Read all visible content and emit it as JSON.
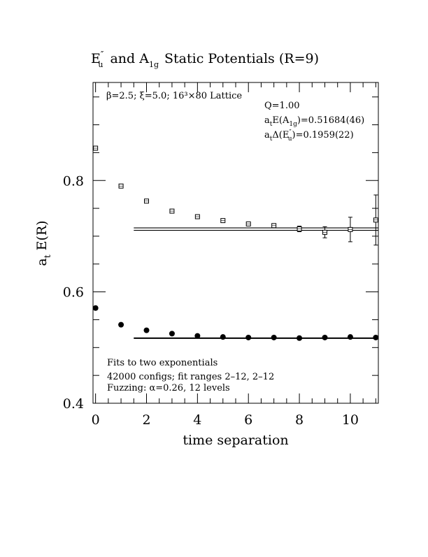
{
  "chart_data": {
    "type": "scatter",
    "title": {
      "part1_main": "E",
      "part1_sup": "″",
      "part1_sub": "u",
      "part2": "and A",
      "part2_sub": "1g",
      "part3": "Static Potentials (R=9)"
    },
    "xlabel": "time separation",
    "ylabel": {
      "main": "a",
      "sub": "t",
      "rest": "E(R)"
    },
    "xlim": [
      -0.1,
      11.1
    ],
    "ylim": [
      0.4,
      0.976
    ],
    "x_ticks": [
      0,
      2,
      4,
      6,
      8,
      10
    ],
    "y_ticks": [
      0.4,
      0.6,
      0.8
    ],
    "x_tick_labels": [
      "0",
      "2",
      "4",
      "6",
      "8",
      "10"
    ],
    "y_tick_labels": [
      "0.4",
      "0.6",
      "0.8"
    ],
    "grid": false,
    "series": [
      {
        "marker": "open-square",
        "points": [
          {
            "x": 0,
            "y": 0.858,
            "err": 0
          },
          {
            "x": 1,
            "y": 0.79,
            "err": 0
          },
          {
            "x": 2,
            "y": 0.763,
            "err": 0
          },
          {
            "x": 3,
            "y": 0.745,
            "err": 0
          },
          {
            "x": 4,
            "y": 0.735,
            "err": 0
          },
          {
            "x": 5,
            "y": 0.728,
            "err": 0
          },
          {
            "x": 6,
            "y": 0.722,
            "err": 0
          },
          {
            "x": 7,
            "y": 0.719,
            "err": 0
          },
          {
            "x": 8,
            "y": 0.713,
            "err": 0.005
          },
          {
            "x": 9,
            "y": 0.707,
            "err": 0.01
          },
          {
            "x": 10,
            "y": 0.712,
            "err": 0.022
          },
          {
            "x": 11,
            "y": 0.729,
            "err": 0.045
          }
        ],
        "fit": {
          "x_start": 1.5,
          "x_end": 11.1,
          "value": 0.7127,
          "band": 0.0022
        }
      },
      {
        "marker": "filled-circle",
        "points": [
          {
            "x": 0,
            "y": 0.571
          },
          {
            "x": 1,
            "y": 0.541
          },
          {
            "x": 2,
            "y": 0.531
          },
          {
            "x": 3,
            "y": 0.525
          },
          {
            "x": 4,
            "y": 0.521
          },
          {
            "x": 5,
            "y": 0.519
          },
          {
            "x": 6,
            "y": 0.518
          },
          {
            "x": 7,
            "y": 0.518
          },
          {
            "x": 8,
            "y": 0.517
          },
          {
            "x": 9,
            "y": 0.518
          },
          {
            "x": 10,
            "y": 0.519
          },
          {
            "x": 11,
            "y": 0.518
          }
        ],
        "fit": {
          "x_start": 1.5,
          "x_end": 11.1,
          "value": 0.5168,
          "band": 0.0005
        }
      }
    ],
    "annotations": {
      "lattice": "β=2.5; ξ=5.0; 16³×80 Lattice",
      "q": "Q=1.00",
      "energy_prefix": "a",
      "energy_prefix_sub": "t",
      "energy_mid": "E(A",
      "energy_sub": "1g",
      "energy_value": ")=0.51684(46)",
      "delta_prefix": "a",
      "delta_prefix_sub": "t",
      "delta_mid": "Δ(E",
      "delta_sup": "″",
      "delta_sub": "u",
      "delta_value": ")=0.1959(22)",
      "fit_line1": "Fits to two exponentials",
      "fit_line2": "42000 configs; fit ranges 2–12, 2–12",
      "fit_line3": "Fuzzing: α=0.26, 12 levels"
    }
  }
}
